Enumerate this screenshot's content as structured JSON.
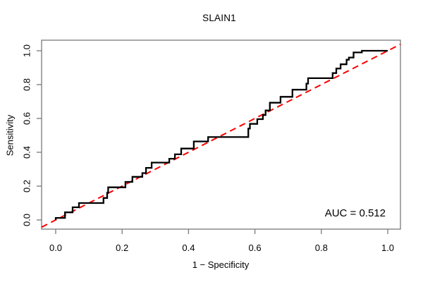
{
  "figure": {
    "title": "SLAIN1",
    "xlabel": "1 − Specificity",
    "ylabel": "Sensitivity",
    "auc_label": "AUC = 0.512"
  },
  "chart_data": {
    "type": "line",
    "subtype": "roc-step-curve",
    "title": "SLAIN1",
    "xlabel": "1 − Specificity",
    "ylabel": "Sensitivity",
    "xlim": [
      0,
      1
    ],
    "ylim": [
      0,
      1
    ],
    "grid": false,
    "frame_box": true,
    "x_tick_values": [
      0.0,
      0.2,
      0.4,
      0.6,
      0.8,
      1.0
    ],
    "x_tick_labels": [
      "0.0",
      "0.2",
      "0.4",
      "0.6",
      "0.8",
      "1.0"
    ],
    "y_tick_values": [
      0.0,
      0.2,
      0.4,
      0.6,
      0.8,
      1.0
    ],
    "y_tick_labels": [
      "0.0",
      "0.2",
      "0.4",
      "0.6",
      "0.8",
      "1.0"
    ],
    "auc": 0.512,
    "annotations": [
      {
        "text": "AUC = 0.512",
        "position": "bottom-right"
      }
    ],
    "colors": {
      "roc_curve": "#000000",
      "diagonal": "#ff0000",
      "frame": "#7a7a7a",
      "text": "#000000",
      "background": "#ffffff"
    },
    "series": [
      {
        "name": "ROC curve",
        "style": "step",
        "color": "#000000",
        "line_width": 2.3,
        "points": [
          [
            0,
            0
          ],
          [
            0,
            0.012
          ],
          [
            0.028,
            0.012
          ],
          [
            0.028,
            0.045
          ],
          [
            0.051,
            0.045
          ],
          [
            0.051,
            0.075
          ],
          [
            0.07,
            0.075
          ],
          [
            0.07,
            0.1
          ],
          [
            0.144,
            0.1
          ],
          [
            0.144,
            0.13
          ],
          [
            0.155,
            0.13
          ],
          [
            0.155,
            0.161
          ],
          [
            0.158,
            0.161
          ],
          [
            0.158,
            0.193
          ],
          [
            0.21,
            0.193
          ],
          [
            0.21,
            0.225
          ],
          [
            0.231,
            0.225
          ],
          [
            0.231,
            0.255
          ],
          [
            0.261,
            0.255
          ],
          [
            0.261,
            0.277
          ],
          [
            0.272,
            0.277
          ],
          [
            0.272,
            0.308
          ],
          [
            0.289,
            0.308
          ],
          [
            0.289,
            0.339
          ],
          [
            0.342,
            0.339
          ],
          [
            0.342,
            0.362
          ],
          [
            0.359,
            0.362
          ],
          [
            0.359,
            0.388
          ],
          [
            0.378,
            0.388
          ],
          [
            0.378,
            0.422
          ],
          [
            0.416,
            0.422
          ],
          [
            0.416,
            0.464
          ],
          [
            0.459,
            0.464
          ],
          [
            0.459,
            0.49
          ],
          [
            0.58,
            0.49
          ],
          [
            0.58,
            0.54
          ],
          [
            0.585,
            0.54
          ],
          [
            0.585,
            0.568
          ],
          [
            0.607,
            0.568
          ],
          [
            0.607,
            0.596
          ],
          [
            0.624,
            0.596
          ],
          [
            0.624,
            0.62
          ],
          [
            0.632,
            0.62
          ],
          [
            0.632,
            0.647
          ],
          [
            0.645,
            0.647
          ],
          [
            0.645,
            0.693
          ],
          [
            0.677,
            0.693
          ],
          [
            0.677,
            0.728
          ],
          [
            0.713,
            0.728
          ],
          [
            0.713,
            0.77
          ],
          [
            0.755,
            0.77
          ],
          [
            0.755,
            0.806
          ],
          [
            0.76,
            0.806
          ],
          [
            0.76,
            0.838
          ],
          [
            0.834,
            0.838
          ],
          [
            0.834,
            0.868
          ],
          [
            0.845,
            0.868
          ],
          [
            0.845,
            0.895
          ],
          [
            0.858,
            0.895
          ],
          [
            0.858,
            0.92
          ],
          [
            0.876,
            0.92
          ],
          [
            0.876,
            0.947
          ],
          [
            0.883,
            0.947
          ],
          [
            0.883,
            0.96
          ],
          [
            0.897,
            0.96
          ],
          [
            0.897,
            0.99
          ],
          [
            0.922,
            0.99
          ],
          [
            0.922,
            1.0
          ],
          [
            1.0,
            1.0
          ]
        ]
      },
      {
        "name": "chance diagonal",
        "style": "dashed",
        "color": "#ff0000",
        "line_width": 2,
        "points": [
          [
            0,
            0
          ],
          [
            1,
            1
          ]
        ]
      }
    ]
  }
}
